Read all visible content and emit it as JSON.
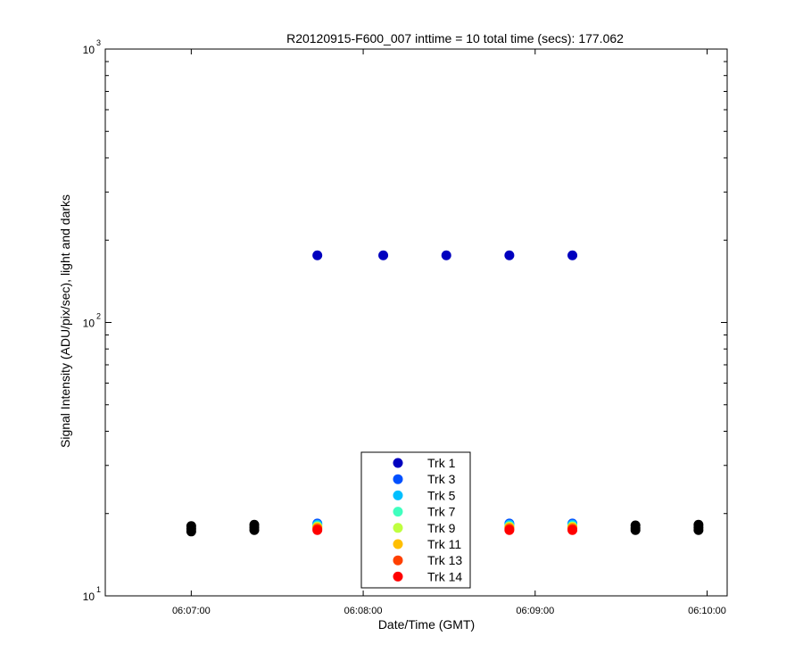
{
  "chart_data": {
    "type": "scatter",
    "title": "R20120915-F600_007 inttime = 10 total time (secs): 177.062",
    "xlabel": "Date/Time (GMT)",
    "ylabel": "Signal Intensity (ADU/pix/sec), light and darks",
    "x_scale": "time",
    "y_scale": "log",
    "xlim": [
      "06:06:30",
      "06:10:07"
    ],
    "ylim": [
      10,
      1000
    ],
    "x_ticks": [
      "06:07:00",
      "06:08:00",
      "06:09:00",
      "06:10:00"
    ],
    "y_ticks": [
      {
        "base": "10",
        "exp": "1",
        "value": 10
      },
      {
        "base": "10",
        "exp": "2",
        "value": 100
      },
      {
        "base": "10",
        "exp": "3",
        "value": 1000
      }
    ],
    "grid": false,
    "legend_position": "bottom-center",
    "series": [
      {
        "name": "Trk 1",
        "color": "#0000bf",
        "points": [
          {
            "x": "06:07:44",
            "y": 176
          },
          {
            "x": "06:08:07",
            "y": 176
          },
          {
            "x": "06:08:29",
            "y": 176
          },
          {
            "x": "06:08:51",
            "y": 176
          },
          {
            "x": "06:09:13",
            "y": 176
          }
        ]
      },
      {
        "name": "Trk 3",
        "color": "#0050ff",
        "points": [
          {
            "x": "06:07:44",
            "y": 18.4
          },
          {
            "x": "06:08:51",
            "y": 18.4
          },
          {
            "x": "06:09:13",
            "y": 18.4
          }
        ]
      },
      {
        "name": "Trk 5",
        "color": "#00bfff",
        "points": [
          {
            "x": "06:07:44",
            "y": 18.2
          },
          {
            "x": "06:08:51",
            "y": 18.2
          },
          {
            "x": "06:09:13",
            "y": 18.2
          }
        ]
      },
      {
        "name": "Trk 7",
        "color": "#40ffbf",
        "points": [
          {
            "x": "06:07:44",
            "y": 18.0
          },
          {
            "x": "06:08:51",
            "y": 18.0
          },
          {
            "x": "06:09:13",
            "y": 18.0
          }
        ]
      },
      {
        "name": "Trk 9",
        "color": "#bfff40",
        "points": [
          {
            "x": "06:07:44",
            "y": 17.9
          },
          {
            "x": "06:08:51",
            "y": 17.9
          },
          {
            "x": "06:09:13",
            "y": 17.9
          }
        ]
      },
      {
        "name": "Trk 11",
        "color": "#ffbf00",
        "points": [
          {
            "x": "06:07:44",
            "y": 17.8
          },
          {
            "x": "06:08:51",
            "y": 17.8
          },
          {
            "x": "06:09:13",
            "y": 17.8
          }
        ]
      },
      {
        "name": "Trk 13",
        "color": "#ff4000",
        "points": [
          {
            "x": "06:07:44",
            "y": 17.6
          },
          {
            "x": "06:08:51",
            "y": 17.6
          },
          {
            "x": "06:09:13",
            "y": 17.6
          }
        ]
      },
      {
        "name": "Trk 14",
        "color": "#ff0000",
        "points": [
          {
            "x": "06:07:44",
            "y": 17.4
          },
          {
            "x": "06:08:51",
            "y": 17.4
          },
          {
            "x": "06:09:13",
            "y": 17.4
          }
        ]
      },
      {
        "color": "#000000",
        "points": [
          {
            "x": "06:07:00",
            "y": 18.0
          },
          {
            "x": "06:07:00",
            "y": 17.6
          },
          {
            "x": "06:07:00",
            "y": 17.2
          },
          {
            "x": "06:07:22",
            "y": 18.2
          },
          {
            "x": "06:07:22",
            "y": 17.8
          },
          {
            "x": "06:07:22",
            "y": 17.4
          },
          {
            "x": "06:09:35",
            "y": 18.1
          },
          {
            "x": "06:09:35",
            "y": 17.7
          },
          {
            "x": "06:09:35",
            "y": 17.4
          },
          {
            "x": "06:09:57",
            "y": 18.2
          },
          {
            "x": "06:09:57",
            "y": 17.8
          },
          {
            "x": "06:09:57",
            "y": 17.4
          }
        ]
      }
    ]
  }
}
